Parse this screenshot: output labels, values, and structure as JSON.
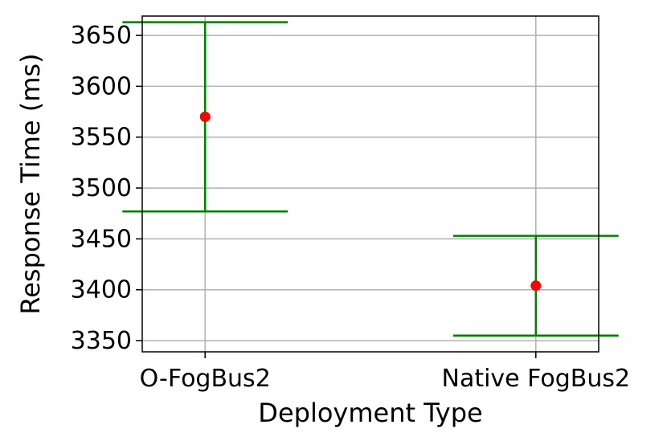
{
  "chart_data": {
    "type": "scatter",
    "title": "",
    "xlabel": "Deployment Type",
    "ylabel": "Response Time (ms)",
    "categories": [
      "O-FogBus2",
      "Native FogBus2"
    ],
    "series": [
      {
        "values": [
          3570,
          3404
        ],
        "err_low": [
          3477,
          3355
        ],
        "err_high": [
          3663,
          3453
        ]
      }
    ],
    "ylim": [
      3339,
      3669
    ],
    "xlim": [
      -0.19,
      1.19
    ],
    "yticks": [
      3350,
      3400,
      3450,
      3500,
      3550,
      3600,
      3650
    ],
    "grid": true,
    "legend": "none",
    "colors": {
      "point": "#ff0000",
      "errorbar": "#008000",
      "grid": "#b0b0b0",
      "axes": "#000000"
    }
  }
}
